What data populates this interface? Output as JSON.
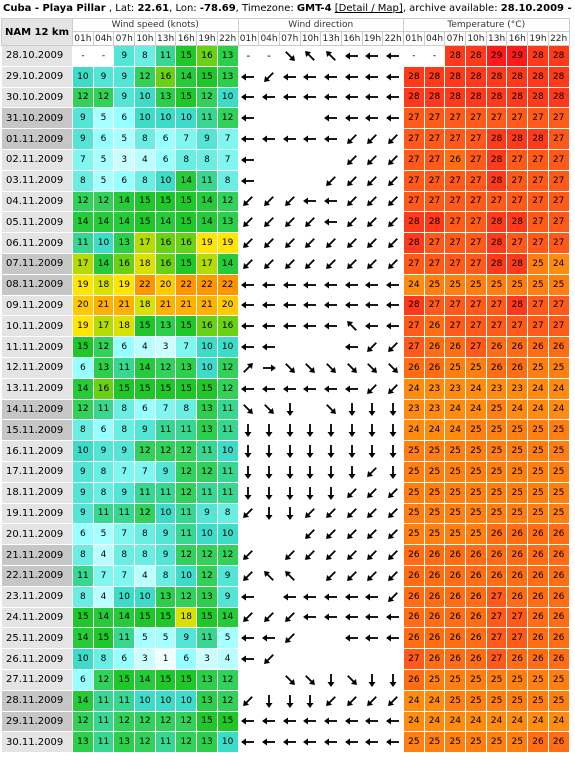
{
  "header": {
    "location": "Cuba - Playa Pillar",
    "lat_label": "Lat:",
    "lat": "22.61",
    "lon_label": "Lon:",
    "lon": "-78.69",
    "tz_label": "Timezone:",
    "tz": "GMT-4",
    "link": "[Detail / Map]",
    "archive_label": "archive available:",
    "archive_range": "28.10.2009 - 25.08.20"
  },
  "table": {
    "model": "NAM 12 km",
    "groups": {
      "wind_speed": "Wind speed (knots)",
      "wind_dir": "Wind direction",
      "temperature": "Temperature (°C)"
    },
    "hours": [
      "01h",
      "04h",
      "07h",
      "10h",
      "13h",
      "16h",
      "19h",
      "22h"
    ],
    "rows": [
      {
        "date": "28.10.2009",
        "we": false,
        "ws": [
          null,
          null,
          9,
          8,
          11,
          15,
          16,
          13
        ],
        "wd": [
          null,
          null,
          "SE",
          "NW",
          "NW",
          "W",
          "W",
          "W"
        ],
        "t": [
          null,
          null,
          28,
          28,
          29,
          29,
          28,
          28
        ]
      },
      {
        "date": "29.10.2009",
        "we": false,
        "ws": [
          10,
          9,
          9,
          12,
          16,
          14,
          15,
          13
        ],
        "wd": [
          "W",
          "SW",
          "W",
          "W",
          "W",
          "W",
          "W",
          "W"
        ],
        "t": [
          28,
          28,
          28,
          28,
          28,
          28,
          28,
          28
        ]
      },
      {
        "date": "30.10.2009",
        "we": false,
        "ws": [
          12,
          12,
          9,
          10,
          13,
          15,
          12,
          10
        ],
        "wd": [
          "W",
          "W",
          "W",
          "W",
          "W",
          "W",
          "W",
          "W"
        ],
        "t": [
          28,
          28,
          28,
          28,
          28,
          28,
          28,
          28
        ]
      },
      {
        "date": "31.10.2009",
        "we": true,
        "ws": [
          9,
          5,
          6,
          10,
          10,
          10,
          11,
          12
        ],
        "wd": [
          "W",
          null,
          null,
          null,
          "W",
          "W",
          "W",
          "W"
        ],
        "t": [
          27,
          27,
          27,
          27,
          27,
          27,
          27,
          27
        ]
      },
      {
        "date": "01.11.2009",
        "we": true,
        "ws": [
          9,
          6,
          5,
          8,
          6,
          7,
          9,
          7
        ],
        "wd": [
          "W",
          "W",
          "W",
          "W",
          "W",
          "SW",
          "SW",
          "SW"
        ],
        "t": [
          27,
          27,
          27,
          27,
          28,
          28,
          28,
          27
        ]
      },
      {
        "date": "02.11.2009",
        "we": false,
        "ws": [
          7,
          5,
          3,
          4,
          6,
          8,
          8,
          7
        ],
        "wd": [
          "W",
          null,
          null,
          null,
          null,
          "SW",
          "SW",
          "SW"
        ],
        "t": [
          27,
          27,
          26,
          27,
          28,
          27,
          27,
          27
        ]
      },
      {
        "date": "03.11.2009",
        "we": false,
        "ws": [
          8,
          5,
          6,
          8,
          10,
          14,
          11,
          8
        ],
        "wd": [
          "W",
          null,
          null,
          null,
          "SW",
          "SW",
          "SW",
          "SW"
        ],
        "t": [
          27,
          27,
          27,
          27,
          28,
          27,
          27,
          27
        ]
      },
      {
        "date": "04.11.2009",
        "we": false,
        "ws": [
          12,
          12,
          14,
          15,
          15,
          15,
          14,
          12
        ],
        "wd": [
          "SW",
          "SW",
          "SW",
          "W",
          "W",
          "SW",
          "SW",
          "SW"
        ],
        "t": [
          27,
          27,
          27,
          27,
          27,
          27,
          27,
          27
        ]
      },
      {
        "date": "05.11.2009",
        "we": false,
        "ws": [
          14,
          14,
          14,
          15,
          14,
          15,
          14,
          13
        ],
        "wd": [
          "SW",
          "SW",
          "SW",
          "SW",
          "W",
          "SW",
          "SW",
          "SW"
        ],
        "t": [
          28,
          28,
          27,
          27,
          28,
          28,
          27,
          27
        ]
      },
      {
        "date": "06.11.2009",
        "we": false,
        "ws": [
          11,
          10,
          13,
          17,
          16,
          16,
          19,
          19
        ],
        "wd": [
          "SW",
          "SW",
          "SW",
          "SW",
          "SW",
          "SW",
          "SW",
          "SW"
        ],
        "t": [
          28,
          27,
          27,
          27,
          28,
          27,
          27,
          27
        ]
      },
      {
        "date": "07.11.2009",
        "we": true,
        "ws": [
          17,
          14,
          16,
          18,
          16,
          15,
          17,
          14
        ],
        "wd": [
          "SW",
          "SW",
          "SW",
          "SW",
          "SW",
          "SW",
          "SW",
          "SW"
        ],
        "t": [
          27,
          27,
          27,
          27,
          28,
          28,
          25,
          24
        ]
      },
      {
        "date": "08.11.2009",
        "we": true,
        "ws": [
          19,
          18,
          19,
          22,
          20,
          22,
          22,
          22
        ],
        "wd": [
          "W",
          "W",
          "W",
          "W",
          "W",
          "W",
          "W",
          "W"
        ],
        "t": [
          24,
          25,
          25,
          25,
          25,
          25,
          25,
          25
        ]
      },
      {
        "date": "09.11.2009",
        "we": false,
        "ws": [
          20,
          21,
          21,
          18,
          21,
          21,
          21,
          20
        ],
        "wd": [
          "W",
          "W",
          "W",
          "W",
          "W",
          "W",
          "W",
          "W"
        ],
        "t": [
          28,
          27,
          27,
          27,
          27,
          28,
          27,
          27
        ]
      },
      {
        "date": "10.11.2009",
        "we": false,
        "ws": [
          19,
          17,
          18,
          15,
          13,
          15,
          16,
          16
        ],
        "wd": [
          "W",
          "W",
          "W",
          "W",
          "W",
          "NW",
          "W",
          "W"
        ],
        "t": [
          27,
          26,
          27,
          27,
          27,
          27,
          27,
          27
        ]
      },
      {
        "date": "11.11.2009",
        "we": false,
        "ws": [
          15,
          12,
          6,
          4,
          3,
          7,
          10,
          10
        ],
        "wd": [
          "W",
          "W",
          null,
          null,
          null,
          "W",
          "SW",
          "SW"
        ],
        "t": [
          27,
          26,
          26,
          27,
          26,
          26,
          26,
          26
        ]
      },
      {
        "date": "12.11.2009",
        "we": false,
        "ws": [
          6,
          13,
          11,
          14,
          12,
          13,
          10,
          12
        ],
        "wd": [
          "NE",
          "E",
          "SE",
          "SE",
          "SE",
          "SE",
          "SE",
          "SE"
        ],
        "t": [
          26,
          26,
          25,
          25,
          26,
          26,
          25,
          25
        ]
      },
      {
        "date": "13.11.2009",
        "we": false,
        "ws": [
          14,
          16,
          15,
          15,
          15,
          15,
          15,
          12
        ],
        "wd": [
          "W",
          "W",
          "W",
          "W",
          "W",
          "W",
          "SW",
          "SW"
        ],
        "t": [
          24,
          23,
          23,
          24,
          23,
          23,
          24,
          24
        ]
      },
      {
        "date": "14.11.2009",
        "we": true,
        "ws": [
          12,
          11,
          8,
          6,
          7,
          8,
          13,
          11
        ],
        "wd": [
          "SE",
          "SE",
          "S",
          null,
          "SE",
          "S",
          "S",
          "S"
        ],
        "t": [
          23,
          23,
          24,
          24,
          25,
          24,
          24,
          24
        ]
      },
      {
        "date": "15.11.2009",
        "we": true,
        "ws": [
          8,
          6,
          8,
          9,
          11,
          11,
          13,
          11
        ],
        "wd": [
          "S",
          "S",
          "S",
          "S",
          "S",
          "S",
          "S",
          "S"
        ],
        "t": [
          24,
          24,
          24,
          25,
          25,
          25,
          25,
          25
        ]
      },
      {
        "date": "16.11.2009",
        "we": false,
        "ws": [
          10,
          9,
          9,
          12,
          12,
          12,
          11,
          10
        ],
        "wd": [
          "S",
          "S",
          "S",
          "S",
          "S",
          "S",
          "S",
          "S"
        ],
        "t": [
          25,
          25,
          25,
          25,
          25,
          25,
          25,
          25
        ]
      },
      {
        "date": "17.11.2009",
        "we": false,
        "ws": [
          9,
          8,
          7,
          7,
          9,
          12,
          12,
          11
        ],
        "wd": [
          "S",
          "S",
          "S",
          "S",
          "S",
          "S",
          "SW",
          "S"
        ],
        "t": [
          25,
          25,
          25,
          25,
          25,
          25,
          25,
          25
        ]
      },
      {
        "date": "18.11.2009",
        "we": false,
        "ws": [
          9,
          8,
          9,
          11,
          11,
          12,
          11,
          11
        ],
        "wd": [
          "S",
          "S",
          "S",
          "S",
          "S",
          "SW",
          "SW",
          "SW"
        ],
        "t": [
          25,
          25,
          25,
          25,
          25,
          25,
          25,
          25
        ]
      },
      {
        "date": "19.11.2009",
        "we": false,
        "ws": [
          9,
          11,
          11,
          12,
          10,
          11,
          9,
          8
        ],
        "wd": [
          "SW",
          "S",
          "S",
          "SW",
          "SW",
          "SW",
          "SW",
          "SW"
        ],
        "t": [
          25,
          25,
          25,
          25,
          25,
          25,
          25,
          25
        ]
      },
      {
        "date": "20.11.2009",
        "we": false,
        "ws": [
          6,
          5,
          7,
          8,
          9,
          11,
          10,
          10
        ],
        "wd": [
          null,
          null,
          null,
          "SW",
          "SW",
          "SW",
          "SW",
          "SW"
        ],
        "t": [
          25,
          25,
          25,
          25,
          26,
          26,
          26,
          26
        ]
      },
      {
        "date": "21.11.2009",
        "we": true,
        "ws": [
          8,
          4,
          8,
          8,
          9,
          12,
          12,
          12
        ],
        "wd": [
          "SW",
          null,
          "SW",
          "SW",
          "SW",
          "SW",
          "SW",
          "SW"
        ],
        "t": [
          26,
          26,
          26,
          26,
          26,
          26,
          26,
          26
        ]
      },
      {
        "date": "22.11.2009",
        "we": true,
        "ws": [
          11,
          7,
          7,
          4,
          8,
          10,
          12,
          9
        ],
        "wd": [
          "SW",
          "NW",
          "NW",
          null,
          "SW",
          "SW",
          "SW",
          "SW"
        ],
        "t": [
          26,
          26,
          26,
          26,
          26,
          26,
          26,
          26
        ]
      },
      {
        "date": "23.11.2009",
        "we": false,
        "ws": [
          8,
          4,
          10,
          10,
          13,
          12,
          13,
          9
        ],
        "wd": [
          "W",
          null,
          "W",
          "W",
          "W",
          "W",
          "W",
          "SW"
        ],
        "t": [
          26,
          26,
          26,
          26,
          27,
          26,
          26,
          26
        ]
      },
      {
        "date": "24.11.2009",
        "we": false,
        "ws": [
          15,
          14,
          14,
          15,
          15,
          18,
          15,
          14
        ],
        "wd": [
          "SW",
          "SW",
          "SW",
          "W",
          "W",
          "W",
          "W",
          "W"
        ],
        "t": [
          26,
          26,
          26,
          26,
          27,
          27,
          26,
          26
        ]
      },
      {
        "date": "25.11.2009",
        "we": false,
        "ws": [
          14,
          15,
          11,
          5,
          5,
          9,
          11,
          5
        ],
        "wd": [
          "W",
          "W",
          "SW",
          null,
          null,
          "W",
          "W",
          "W"
        ],
        "t": [
          26,
          26,
          26,
          26,
          27,
          27,
          26,
          26
        ]
      },
      {
        "date": "26.11.2009",
        "we": false,
        "ws": [
          10,
          8,
          6,
          3,
          1,
          6,
          3,
          4
        ],
        "wd": [
          "W",
          "SW",
          null,
          null,
          null,
          null,
          null,
          null
        ],
        "t": [
          27,
          26,
          26,
          26,
          27,
          26,
          26,
          26
        ]
      },
      {
        "date": "27.11.2009",
        "we": false,
        "ws": [
          6,
          12,
          15,
          14,
          15,
          15,
          13,
          12
        ],
        "wd": [
          null,
          null,
          "SE",
          "SE",
          "S",
          "SE",
          "S",
          "S"
        ],
        "t": [
          26,
          25,
          25,
          25,
          25,
          25,
          25,
          25
        ]
      },
      {
        "date": "28.11.2009",
        "we": true,
        "ws": [
          14,
          11,
          11,
          10,
          10,
          10,
          13,
          12
        ],
        "wd": [
          "SW",
          "S",
          "S",
          "S",
          "SW",
          "SW",
          "SW",
          "SW"
        ],
        "t": [
          24,
          24,
          25,
          25,
          25,
          25,
          25,
          25
        ]
      },
      {
        "date": "29.11.2009",
        "we": true,
        "ws": [
          12,
          11,
          12,
          12,
          12,
          12,
          15,
          15
        ],
        "wd": [
          "W",
          "W",
          "W",
          "W",
          "W",
          "W",
          "W",
          "W"
        ],
        "t": [
          24,
          24,
          24,
          24,
          24,
          24,
          24,
          24
        ]
      },
      {
        "date": "30.11.2009",
        "we": false,
        "ws": [
          13,
          11,
          13,
          12,
          11,
          12,
          13,
          10
        ],
        "wd": [
          "W",
          "W",
          "W",
          "W",
          "W",
          "W",
          "W",
          "W"
        ],
        "t": [
          25,
          25,
          25,
          25,
          25,
          25,
          26,
          26
        ]
      }
    ]
  },
  "colors": {
    "ws_low": "#ffffff",
    "ws_mid": "#7fffff",
    "ws_green": "#22cc44",
    "ws_yellow": "#ffee00",
    "ws_orange": "#ff9900",
    "t_orange": "#ff5a1a",
    "t_red": "#ff2020",
    "date_bg": "#e4e4e4",
    "date_weekend": "#c6c6c6"
  },
  "icons": {
    "wind_arrow": "arrow-icon"
  }
}
